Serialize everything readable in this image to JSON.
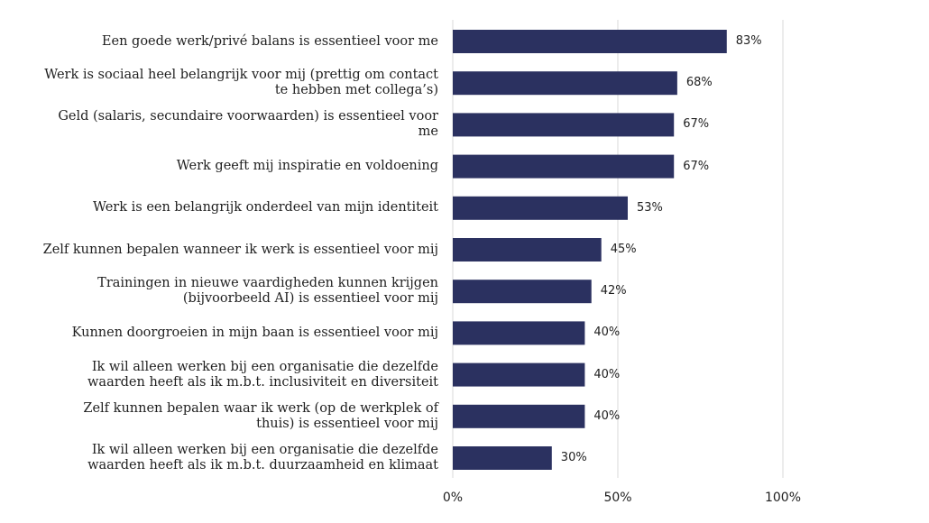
{
  "chart_data": {
    "type": "bar",
    "orientation": "horizontal",
    "categories": [
      "Een goede werk/privé balans is essentieel voor me",
      "Werk is sociaal heel belangrijk voor mij (prettig om contact te hebben met collega’s)",
      "Geld (salaris, secundaire voorwaarden) is essentieel voor me",
      "Werk geeft mij inspiratie en voldoening",
      "Werk is een belangrijk onderdeel van mijn identiteit",
      "Zelf kunnen bepalen wanneer ik werk is essentieel voor mij",
      "Trainingen in nieuwe vaardigheden kunnen krijgen (bijvoorbeeld AI) is essentieel voor mij",
      "Kunnen doorgroeien in mijn baan is essentieel voor mij",
      "Ik wil alleen werken bij een organisatie die dezelfde waarden heeft als ik m.b.t. inclusiviteit en diversiteit",
      "Zelf kunnen bepalen waar ik werk (op de werkplek of thuis) is essentieel voor mij",
      "Ik wil alleen werken bij een organisatie die dezelfde waarden heeft als ik m.b.t. duurzaamheid en klimaat"
    ],
    "values": [
      83,
      68,
      67,
      67,
      53,
      45,
      42,
      40,
      40,
      40,
      30
    ],
    "value_labels": [
      "83%",
      "68%",
      "67%",
      "67%",
      "53%",
      "45%",
      "42%",
      "40%",
      "40%",
      "40%",
      "30%"
    ],
    "xlim": [
      0,
      100
    ],
    "x_ticks": [
      0,
      50,
      100
    ],
    "x_tick_labels": [
      "0%",
      "50%",
      "100%"
    ],
    "grid": "vertical",
    "legend": "none",
    "bar_color": "#2b3160",
    "grid_color": "#d9d9d9"
  }
}
